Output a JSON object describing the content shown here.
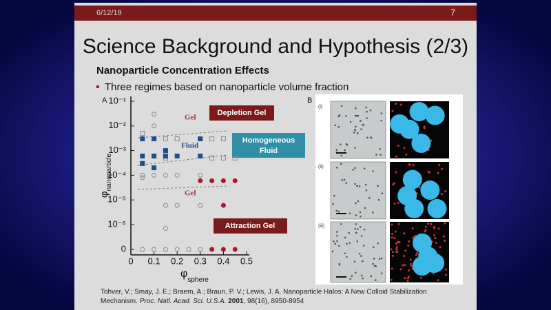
{
  "header": {
    "date": "6/12/19",
    "page": "7"
  },
  "title": "Science Background and Hypothesis (2/3)",
  "subtitle": "Nanoparticle Concentration Effects",
  "bullet": "Three regimes based on nanoparticle volume fraction",
  "panel_a": "A",
  "panel_b": "B",
  "regime_boxes": {
    "depletion": "Depletion Gel",
    "fluid": [
      "Homogeneous",
      "Fluid"
    ],
    "attraction": "Attraction Gel"
  },
  "plot_labels": {
    "gel_top": "Gel",
    "fluid": "Fluid",
    "gel_bottom": "Gel"
  },
  "micrograph_labels": [
    "(i)",
    "(ii)",
    "(iii)"
  ],
  "citation": {
    "line1": "Tohver, V.; Smay, J. E.; Braem, A.; Braun, P. V.; Lewis, J. A. Nanoparticle Halos: A New Colloid Stabilization",
    "line2_start": "Mechanism. ",
    "journal": "Proc. Natl. Acad. Sci. U.S.A.",
    "year": " 2001",
    "line2_end": ", 98(16), 8950-8954"
  },
  "chart_data": {
    "type": "scatter",
    "y_scale": "log",
    "x_label": {
      "symbol": "φ",
      "subscript": "sphere"
    },
    "y_label": {
      "symbol": "φ",
      "subscript": "nanoparticle"
    },
    "xlim": [
      0,
      0.5
    ],
    "xticks": [
      0,
      0.1,
      0.2,
      0.3,
      0.4,
      0.5
    ],
    "ylim": [
      1e-06,
      0.1
    ],
    "yticks": [
      {
        "value": 0.1,
        "label": "10⁻¹"
      },
      {
        "value": 0.01,
        "label": "10⁻²"
      },
      {
        "value": 0.001,
        "label": "10⁻³"
      },
      {
        "value": 0.0001,
        "label": "10⁻⁴"
      },
      {
        "value": 1e-05,
        "label": "10⁻⁵"
      },
      {
        "value": 1e-06,
        "label": "10⁻⁶"
      },
      0
    ],
    "series": [
      {
        "marker": "open-circle",
        "color": "#8a8a8a",
        "x": [
          0.05,
          0.05,
          0.1,
          0.1,
          0.1,
          0.15,
          0.2,
          0.3,
          0.15,
          0.2,
          0.3,
          0.15,
          0.05,
          0.1,
          0.15,
          0.2,
          0.25,
          0.3
        ],
        "values": [
          0.0001,
          8e-05,
          0.03,
          0.01,
          0.0001,
          0.0001,
          0.0001,
          0.0001,
          6e-06,
          6e-06,
          6e-06,
          7e-07,
          0,
          0,
          0,
          0,
          0,
          0
        ]
      },
      {
        "marker": "open-square",
        "color": "#8a8a8a",
        "x": [
          0.05,
          0.1,
          0.15,
          0.2,
          0.3,
          0.35,
          0.4,
          0.35,
          0.4,
          0.45,
          0.05,
          0.15
        ],
        "values": [
          0.005,
          0.003,
          0.003,
          0.003,
          0.003,
          0.003,
          0.003,
          0.0005,
          0.0005,
          0.0005,
          0.0003,
          0.0005
        ]
      },
      {
        "marker": "filled-square",
        "color": "#1f4e8c",
        "x": [
          0.05,
          0.1,
          0.05,
          0.1,
          0.15,
          0.2,
          0.3,
          0.05,
          0.1,
          0.15,
          0.3
        ],
        "values": [
          0.003,
          0.003,
          0.0006,
          0.0006,
          0.0006,
          0.0006,
          0.0006,
          0.0003,
          0.0002,
          0.001,
          0.003
        ]
      },
      {
        "marker": "filled-circle",
        "color": "#b0182a",
        "x": [
          0.3,
          0.35,
          0.4,
          0.45,
          0.4,
          0.35,
          0.4,
          0.45
        ],
        "values": [
          6e-05,
          6e-05,
          6e-05,
          6e-05,
          6e-06,
          0,
          0,
          0
        ]
      }
    ]
  }
}
